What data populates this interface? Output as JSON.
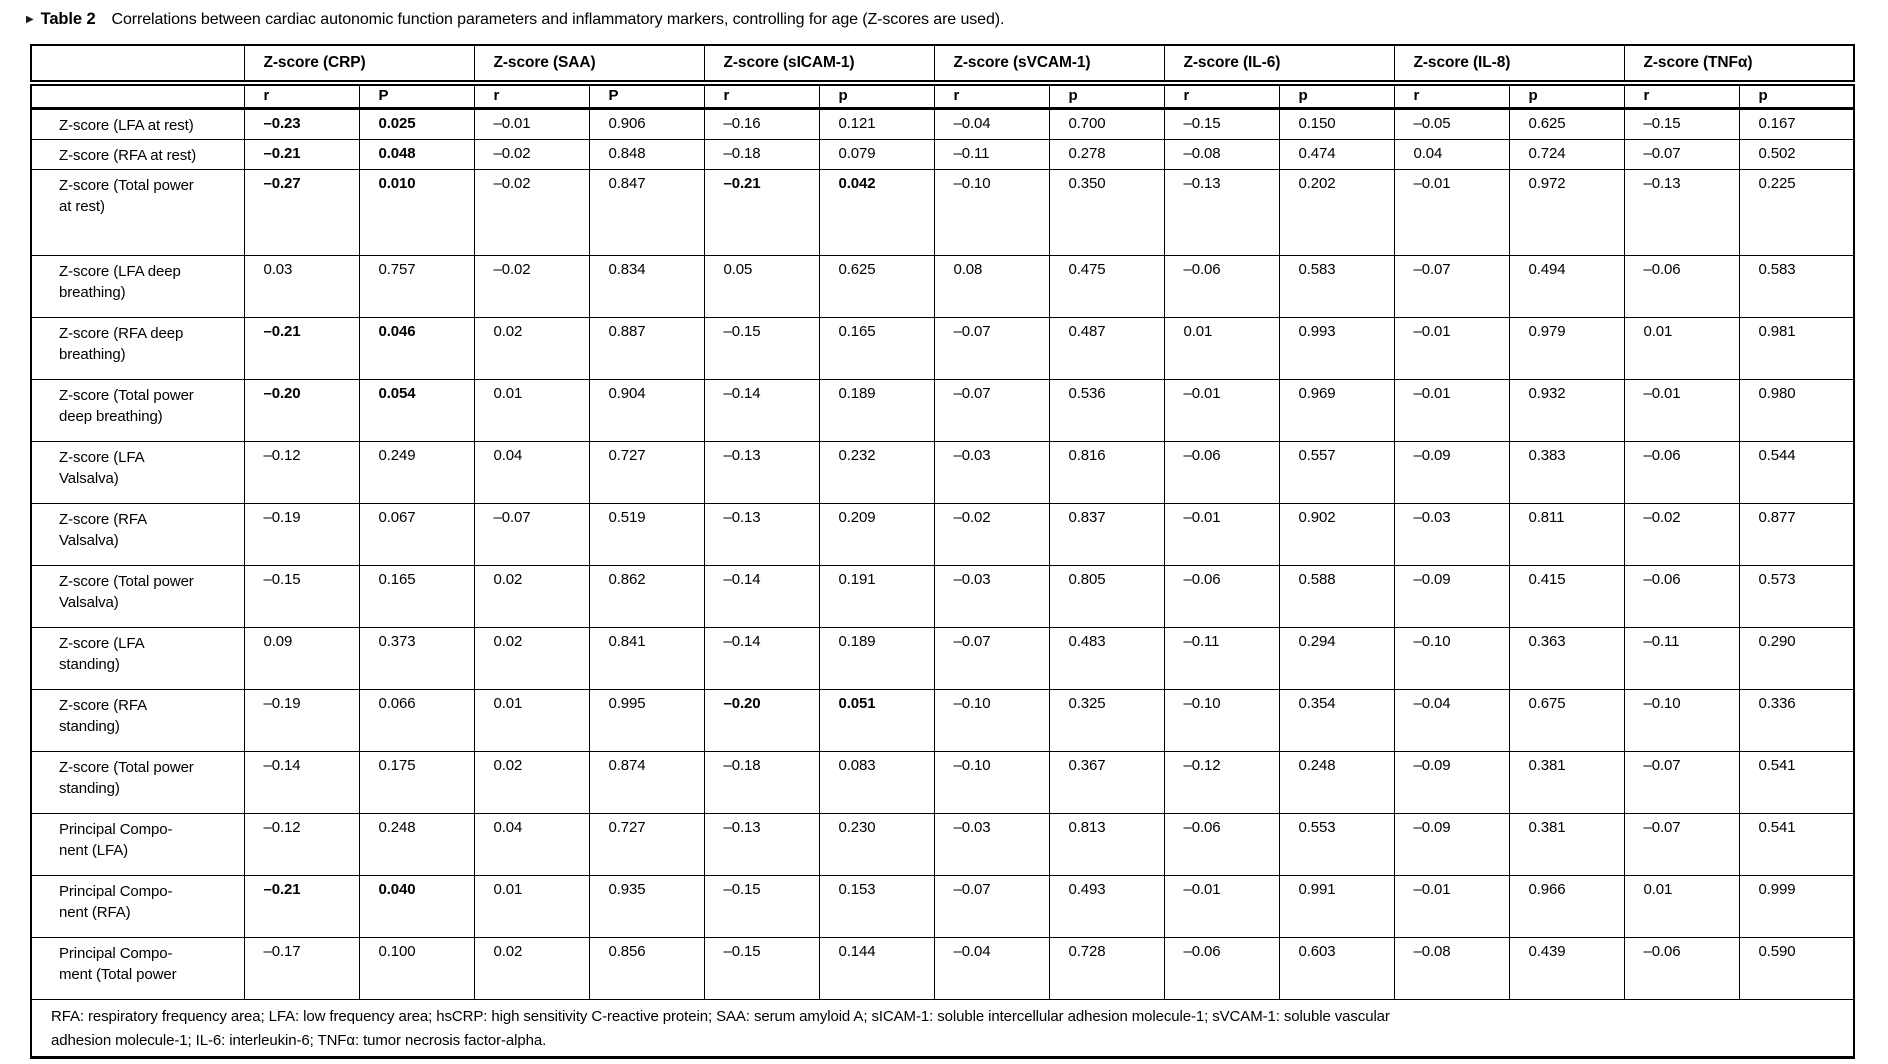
{
  "title": {
    "marker": "▶",
    "label": "Table 2",
    "caption": "Correlations between cardiac autonomic function parameters and inflammatory markers, controlling for age (Z-scores are used)."
  },
  "table": {
    "corner": "",
    "groups": [
      {
        "label": "Z-score (CRP)",
        "sub": [
          "r",
          "P"
        ]
      },
      {
        "label": "Z-score (SAA)",
        "sub": [
          "r",
          "P"
        ]
      },
      {
        "label": "Z-score (sICAM-1)",
        "sub": [
          "r",
          "p"
        ]
      },
      {
        "label": "Z-score (sVCAM-1)",
        "sub": [
          "r",
          "p"
        ]
      },
      {
        "label": "Z-score (IL-6)",
        "sub": [
          "r",
          "p"
        ]
      },
      {
        "label": "Z-score (IL-8)",
        "sub": [
          "r",
          "p"
        ]
      },
      {
        "label": "Z-score (TNFα)",
        "sub": [
          "r",
          "p"
        ]
      }
    ],
    "rows": [
      {
        "label": "Z-score (LFA at rest)",
        "values": [
          "–0.23",
          "0.025",
          "–0.01",
          "0.906",
          "–0.16",
          "0.121",
          "–0.04",
          "0.700",
          "–0.15",
          "0.150",
          "–0.05",
          "0.625",
          "–0.15",
          "0.167"
        ],
        "bold": [
          0,
          1
        ]
      },
      {
        "label": "Z-score (RFA at rest)",
        "values": [
          "–0.21",
          "0.048",
          "–0.02",
          "0.848",
          "–0.18",
          "0.079",
          "–0.11",
          "0.278",
          "–0.08",
          "0.474",
          "0.04",
          "0.724",
          "–0.07",
          "0.502"
        ],
        "bold": [
          0,
          1
        ]
      },
      {
        "label": "Z-score (Total power\nat rest)",
        "values": [
          "–0.27",
          "0.010",
          "–0.02",
          "0.847",
          "–0.21",
          "0.042",
          "–0.10",
          "0.350",
          "–0.13",
          "0.202",
          "–0.01",
          "0.972",
          "–0.13",
          "0.225"
        ],
        "bold": [
          0,
          1,
          4,
          5
        ]
      },
      {
        "label": "Z-score (LFA deep\nbreathing)",
        "values": [
          "0.03",
          "0.757",
          "–0.02",
          "0.834",
          "0.05",
          "0.625",
          "0.08",
          "0.475",
          "–0.06",
          "0.583",
          "–0.07",
          "0.494",
          "–0.06",
          "0.583"
        ],
        "bold": []
      },
      {
        "label": "Z-score (RFA deep\nbreathing)",
        "values": [
          "–0.21",
          "0.046",
          "0.02",
          "0.887",
          "–0.15",
          "0.165",
          "–0.07",
          "0.487",
          "0.01",
          "0.993",
          "–0.01",
          "0.979",
          "0.01",
          "0.981"
        ],
        "bold": [
          0,
          1
        ]
      },
      {
        "label": "Z-score (Total power\ndeep breathing)",
        "values": [
          "–0.20",
          "0.054",
          "0.01",
          "0.904",
          "–0.14",
          "0.189",
          "–0.07",
          "0.536",
          "–0.01",
          "0.969",
          "–0.01",
          "0.932",
          "–0.01",
          "0.980"
        ],
        "bold": [
          0,
          1
        ]
      },
      {
        "label": "Z-score (LFA\nValsalva)",
        "values": [
          "–0.12",
          "0.249",
          "0.04",
          "0.727",
          "–0.13",
          "0.232",
          "–0.03",
          "0.816",
          "–0.06",
          "0.557",
          "–0.09",
          "0.383",
          "–0.06",
          "0.544"
        ],
        "bold": []
      },
      {
        "label": "Z-score (RFA\nValsalva)",
        "values": [
          "–0.19",
          "0.067",
          "–0.07",
          "0.519",
          "–0.13",
          "0.209",
          "–0.02",
          "0.837",
          "–0.01",
          "0.902",
          "–0.03",
          "0.811",
          "–0.02",
          "0.877"
        ],
        "bold": []
      },
      {
        "label": "Z-score (Total power\nValsalva)",
        "values": [
          "–0.15",
          "0.165",
          "0.02",
          "0.862",
          "–0.14",
          "0.191",
          "–0.03",
          "0.805",
          "–0.06",
          "0.588",
          "–0.09",
          "0.415",
          "–0.06",
          "0.573"
        ],
        "bold": []
      },
      {
        "label": "Z-score (LFA\nstanding)",
        "values": [
          "0.09",
          "0.373",
          "0.02",
          "0.841",
          "–0.14",
          "0.189",
          "–0.07",
          "0.483",
          "–0.11",
          "0.294",
          "–0.10",
          "0.363",
          "–0.11",
          "0.290"
        ],
        "bold": []
      },
      {
        "label": "Z-score (RFA\nstanding)",
        "values": [
          "–0.19",
          "0.066",
          "0.01",
          "0.995",
          "–0.20",
          "0.051",
          "–0.10",
          "0.325",
          "–0.10",
          "0.354",
          "–0.04",
          "0.675",
          "–0.10",
          "0.336"
        ],
        "bold": [
          4,
          5
        ]
      },
      {
        "label": "Z-score (Total power\nstanding)",
        "values": [
          "–0.14",
          "0.175",
          "0.02",
          "0.874",
          "–0.18",
          "0.083",
          "–0.10",
          "0.367",
          "–0.12",
          "0.248",
          "–0.09",
          "0.381",
          "–0.07",
          "0.541"
        ],
        "bold": []
      },
      {
        "label": "Principal Compo-\nnent (LFA)",
        "values": [
          "–0.12",
          "0.248",
          "0.04",
          "0.727",
          "–0.13",
          "0.230",
          "–0.03",
          "0.813",
          "–0.06",
          "0.553",
          "–0.09",
          "0.381",
          "–0.07",
          "0.541"
        ],
        "bold": []
      },
      {
        "label": "Principal Compo-\nnent (RFA)",
        "values": [
          "–0.21",
          "0.040",
          "0.01",
          "0.935",
          "–0.15",
          "0.153",
          "–0.07",
          "0.493",
          "–0.01",
          "0.991",
          "–0.01",
          "0.966",
          "0.01",
          "0.999"
        ],
        "bold": [
          0,
          1
        ]
      },
      {
        "label": "Principal Compo-\nment (Total power",
        "values": [
          "–0.17",
          "0.100",
          "0.02",
          "0.856",
          "–0.15",
          "0.144",
          "–0.04",
          "0.728",
          "–0.06",
          "0.603",
          "–0.08",
          "0.439",
          "–0.06",
          "0.590"
        ],
        "bold": []
      }
    ],
    "footnote": "RFA: respiratory frequency area; LFA: low frequency area; hsCRP: high sensitivity C-reactive protein; SAA: serum amyloid A; sICAM-1: soluble intercellular adhesion molecule-1; sVCAM-1: soluble vascular\nadhesion molecule-1; IL-6: interleukin-6; TNFα: tumor necrosis factor-alpha."
  }
}
